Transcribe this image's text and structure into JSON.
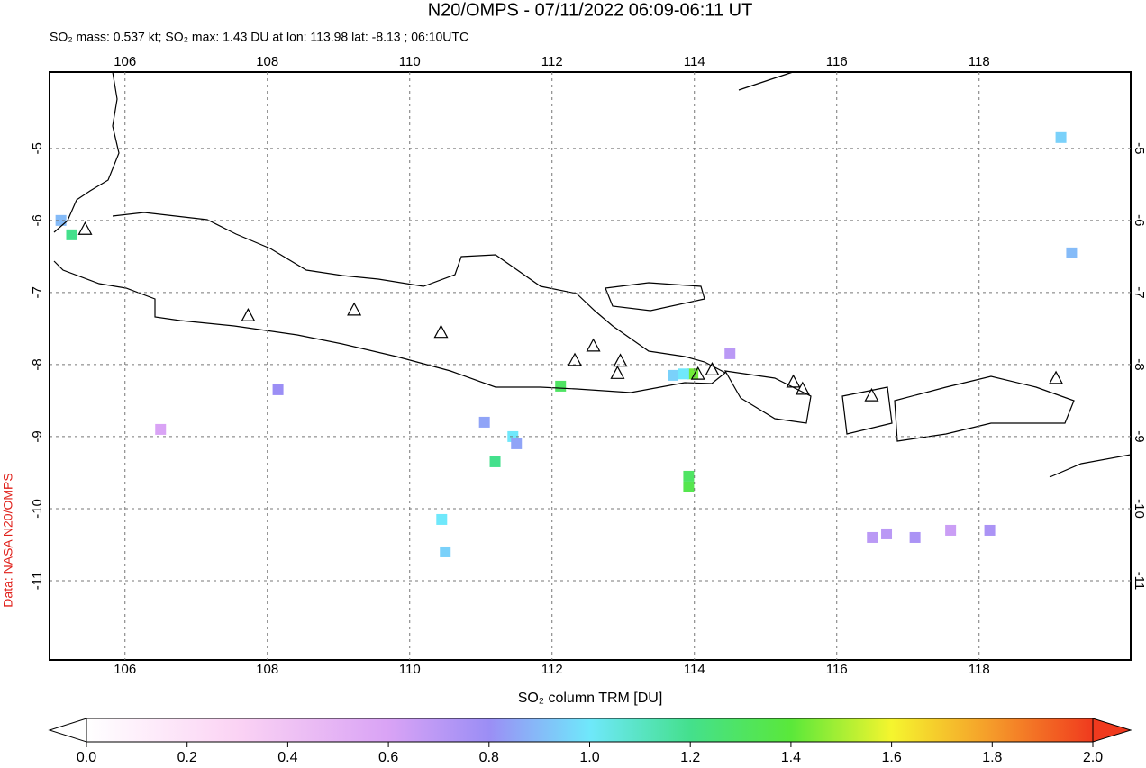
{
  "chart_data": {
    "type": "map",
    "title": "N20/OMPS - 07/11/2022 06:09-06:11 UT",
    "subtitle": "SO₂ mass: 0.537 kt; SO₂ max: 1.43 DU at lon: 113.98 lat: -8.13 ; 06:10UTC",
    "source_label": "Data: NASA N20/OMPS",
    "colorbar_label": "SO₂ column TRM [DU]",
    "xlim": [
      104.94,
      120.13
    ],
    "ylim": [
      -12.1,
      -3.94
    ],
    "xticks": [
      106,
      108,
      110,
      112,
      114,
      116,
      118
    ],
    "yticks": [
      -5,
      -6,
      -7,
      -8,
      -9,
      -10,
      -11
    ],
    "grid": true,
    "colorbar_lim": [
      0,
      2
    ],
    "colorbar_ticks": [
      {
        "value": 0,
        "label": "0.0"
      },
      {
        "value": 0.2,
        "label": "0.2"
      },
      {
        "value": 0.4,
        "label": "0.4"
      },
      {
        "value": 0.6,
        "label": "0.6"
      },
      {
        "value": 0.8,
        "label": "0.8"
      },
      {
        "value": 1,
        "label": "1.0"
      },
      {
        "value": 1.2,
        "label": "1.2"
      },
      {
        "value": 1.4,
        "label": "1.4"
      },
      {
        "value": 1.6,
        "label": "1.6"
      },
      {
        "value": 1.8,
        "label": "1.8"
      },
      {
        "value": 2,
        "label": "2.0"
      }
    ],
    "volcanoes": {
      "lon": [
        105.44,
        107.73,
        109.22,
        110.44,
        112.32,
        112.58,
        112.96,
        112.92,
        114.05,
        114.25,
        115.39,
        115.52,
        116.49,
        119.08
      ],
      "lat": [
        -6.13,
        -7.33,
        -7.25,
        -7.56,
        -7.95,
        -7.75,
        -7.96,
        -8.13,
        -8.14,
        -8.08,
        -8.25,
        -8.35,
        -8.44,
        -8.2
      ]
    },
    "pixels": {
      "lon": [
        113.98,
        113.85,
        112.12,
        111.45,
        110.45,
        111.2,
        113.92,
        113.92,
        105.1,
        105.25,
        117.1,
        118.15,
        119.3,
        119.15,
        111.5,
        110.5,
        114.5,
        116.5,
        116.7,
        117.6,
        108.15,
        111.05,
        113.7,
        106.5
      ],
      "lat": [
        -8.13,
        -8.13,
        -8.3,
        -9.0,
        -10.15,
        -9.35,
        -9.55,
        -9.7,
        -6.0,
        -6.2,
        -10.4,
        -10.3,
        -6.45,
        -4.85,
        -9.1,
        -10.6,
        -7.85,
        -10.4,
        -10.35,
        -10.3,
        -8.35,
        -8.8,
        -8.15,
        -8.9
      ],
      "values": [
        1.43,
        1.0,
        1.3,
        1.0,
        1.0,
        1.2,
        1.3,
        1.35,
        0.9,
        1.2,
        0.75,
        0.75,
        0.9,
        0.95,
        0.85,
        0.95,
        0.7,
        0.7,
        0.7,
        0.65,
        0.8,
        0.85,
        0.95,
        0.6
      ]
    }
  }
}
